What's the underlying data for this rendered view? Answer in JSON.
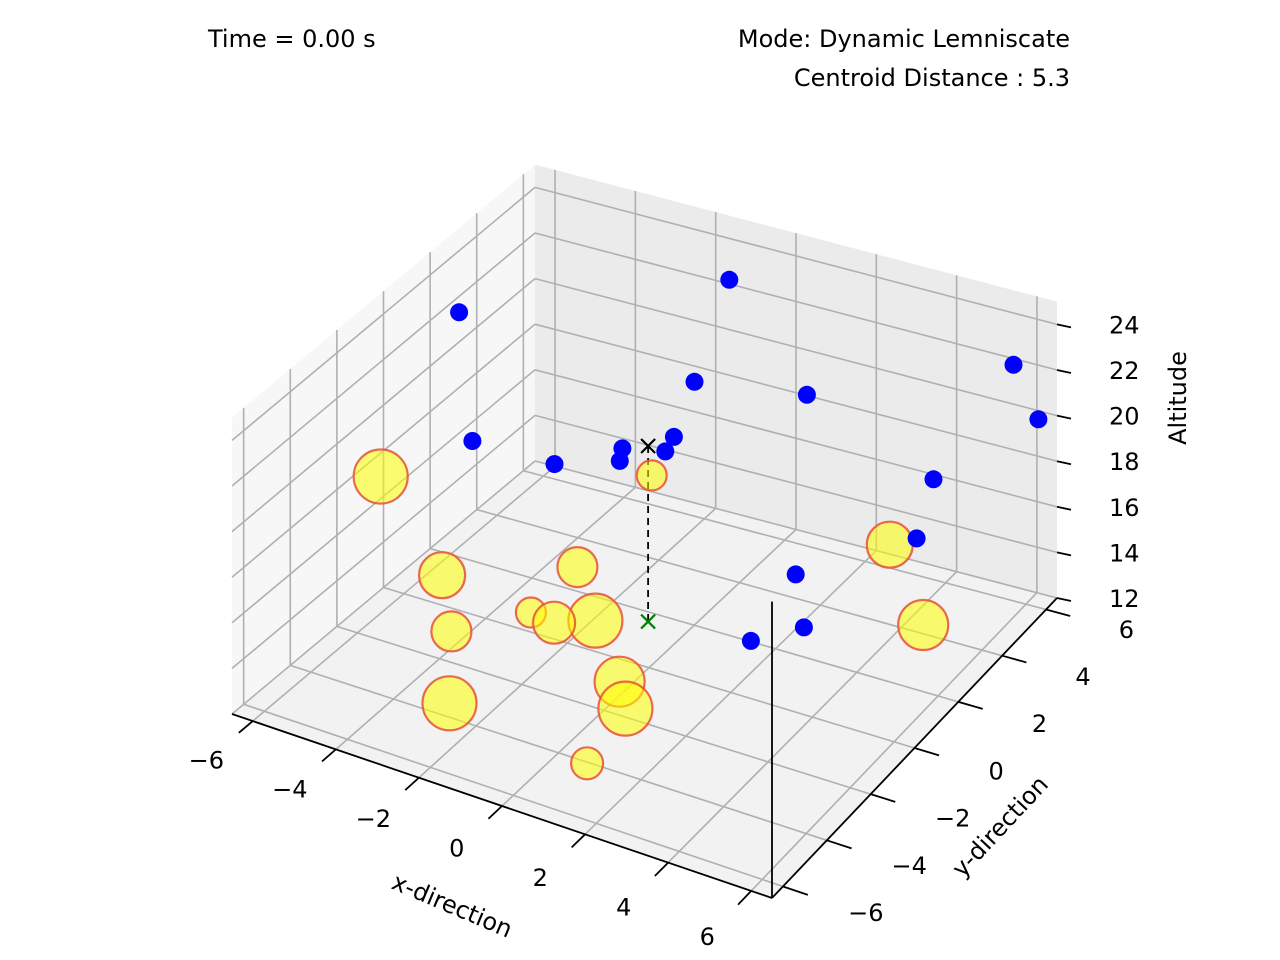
{
  "chart_data": {
    "type": "scatter",
    "title": "",
    "annotations": {
      "time": "Time = 0.00 s",
      "mode": "Mode: Dynamic Lemniscate",
      "centroid": "Centroid Distance : 5.3"
    },
    "xlabel": "x-direction",
    "ylabel": "y-direction",
    "zlabel": "Altitude",
    "xlim": [
      -6.5,
      6.5
    ],
    "ylim": [
      -6.5,
      6.5
    ],
    "zlim": [
      12,
      25
    ],
    "x_ticks": [
      "−6",
      "−4",
      "−2",
      "0",
      "2",
      "4",
      "6"
    ],
    "y_ticks": [
      "−6",
      "−4",
      "−2",
      "0",
      "2",
      "4",
      "6"
    ],
    "z_ticks": [
      "12",
      "14",
      "16",
      "18",
      "20",
      "22",
      "24"
    ],
    "grid": true,
    "colors": {
      "blue_points": "#0000ff",
      "yellow_fill": "#ffff00",
      "yellow_edge": "#e8503a",
      "start_marker": "#000000",
      "end_marker": "#008000"
    },
    "series": [
      {
        "marker": "blue-dot",
        "points": [
          [
            -5.9,
            2.2,
            22.5
          ],
          [
            -0.7,
            4.8,
            24.2
          ],
          [
            -3.2,
            -2.0,
            22.0
          ],
          [
            -1.0,
            3.8,
            20.5
          ],
          [
            1.0,
            5.2,
            19.6
          ],
          [
            -0.5,
            2.0,
            20.0
          ],
          [
            -0.6,
            1.8,
            19.5
          ],
          [
            -1.6,
            1.7,
            19.2
          ],
          [
            -3.1,
            1.4,
            18.0
          ],
          [
            -2.0,
            2.3,
            17.9
          ],
          [
            5.2,
            2.5,
            18.0
          ],
          [
            4.8,
            4.0,
            18.9
          ],
          [
            2.0,
            2.9,
            14.4
          ],
          [
            2.7,
            2.0,
            13.3
          ],
          [
            2.0,
            0.9,
            13.4
          ],
          [
            6.2,
            6.2,
            20.0
          ],
          [
            6.4,
            4.7,
            24.0
          ]
        ]
      },
      {
        "marker": "yellow-circle",
        "points": [
          [
            -6.0,
            -1.0,
            18.0,
            27
          ],
          [
            -0.6,
            1.2,
            19.0,
            15
          ],
          [
            -4.5,
            -1.0,
            14.5,
            23
          ],
          [
            -2.2,
            0.8,
            14.5,
            20
          ],
          [
            -1.2,
            -0.2,
            13.6,
            27
          ],
          [
            -2.5,
            -0.7,
            13.7,
            15
          ],
          [
            -2.1,
            -0.4,
            13.2,
            21
          ],
          [
            -3.6,
            -2.2,
            13.6,
            20
          ],
          [
            0.0,
            -1.3,
            12.6,
            25
          ],
          [
            0.8,
            -2.5,
            13.0,
            27
          ],
          [
            -2.2,
            -4.8,
            13.6,
            27
          ],
          [
            0.8,
            -4.2,
            12.2,
            16
          ],
          [
            3.5,
            4.4,
            15.0,
            23
          ],
          [
            5.2,
            2.8,
            13.9,
            25
          ]
        ]
      },
      {
        "marker": "centroid-start-x",
        "points": [
          [
            -0.8,
            1.4,
            20.0
          ]
        ]
      },
      {
        "marker": "centroid-end-x",
        "points": [
          [
            -0.8,
            1.4,
            12.3
          ]
        ]
      }
    ]
  }
}
